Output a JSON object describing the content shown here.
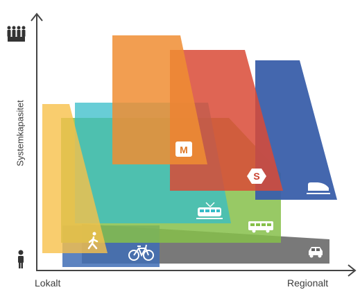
{
  "axes": {
    "x_left_label": "Lokalt",
    "x_right_label": "Regionalt",
    "y_label": "Systemkapasitet",
    "y_top_icon": "group-of-people-icon",
    "y_bottom_icon": "single-person-icon"
  },
  "modes": [
    {
      "id": "walking",
      "icon": "pedestrian-icon",
      "color": "#f7c04a"
    },
    {
      "id": "bicycle",
      "icon": "bicycle-icon",
      "color": "#3f6db5"
    },
    {
      "id": "car",
      "icon": "car-icon",
      "color": "#616161"
    },
    {
      "id": "bus",
      "icon": "bus-icon",
      "color": "#86c04a"
    },
    {
      "id": "tram",
      "icon": "tram-icon",
      "color": "#35bcc8"
    },
    {
      "id": "metro",
      "icon": "metro-icon",
      "badge": "M",
      "color": "#f08d33"
    },
    {
      "id": "local-train",
      "icon": "local-train-icon",
      "badge": "S",
      "color": "#d94a36"
    },
    {
      "id": "regional-train",
      "icon": "high-speed-train-icon",
      "color": "#3a5faa"
    }
  ]
}
